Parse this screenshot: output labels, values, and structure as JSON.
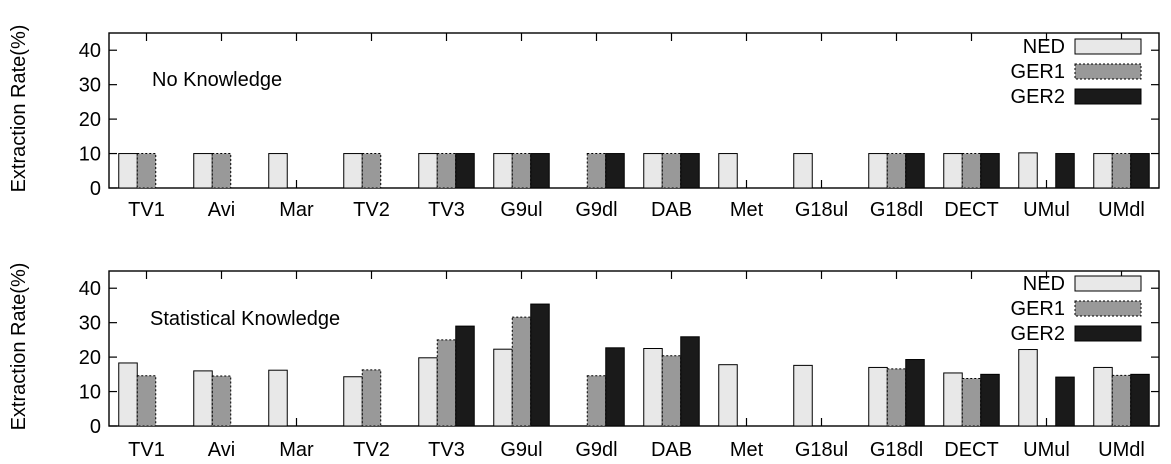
{
  "chart_data": [
    {
      "type": "bar",
      "annotation": "No Knowledge",
      "ylabel": "Extraction Rate(%)",
      "xlabel": "",
      "ylim": [
        0,
        45
      ],
      "yticks": [
        "0",
        "10",
        "20",
        "30",
        "40"
      ],
      "legend_position": "top-right",
      "categories": [
        "TV1",
        "Avi",
        "Mar",
        "TV2",
        "TV3",
        "G9ul",
        "G9dl",
        "DAB",
        "Met",
        "G18ul",
        "G18dl",
        "DECT",
        "UMul",
        "UMdl"
      ],
      "series": [
        {
          "name": "NED",
          "color": "#e8e8e8",
          "values": [
            10,
            10,
            10,
            10,
            10,
            10,
            0,
            10,
            10,
            10,
            10,
            10,
            10.2,
            10
          ]
        },
        {
          "name": "GER1",
          "color": "#999999",
          "values": [
            10,
            10,
            0,
            10,
            10,
            10,
            10,
            10,
            0,
            0,
            10,
            10,
            0,
            10
          ]
        },
        {
          "name": "GER2",
          "color": "#1a1a1a",
          "values": [
            0,
            0,
            0,
            0,
            10,
            10,
            10,
            10,
            0,
            0,
            10,
            10,
            10,
            10
          ]
        }
      ]
    },
    {
      "type": "bar",
      "annotation": "Statistical Knowledge",
      "ylabel": "Extraction Rate(%)",
      "xlabel": "",
      "ylim": [
        0,
        45
      ],
      "yticks": [
        "0",
        "10",
        "20",
        "30",
        "40"
      ],
      "legend_position": "top-right",
      "categories": [
        "TV1",
        "Avi",
        "Mar",
        "TV2",
        "TV3",
        "G9ul",
        "G9dl",
        "DAB",
        "Met",
        "G18ul",
        "G18dl",
        "DECT",
        "UMul",
        "UMdl"
      ],
      "series": [
        {
          "name": "NED",
          "color": "#e8e8e8",
          "values": [
            18.3,
            16,
            16.2,
            14.3,
            19.8,
            22.3,
            0,
            22.5,
            17.8,
            17.6,
            17,
            15.4,
            22.2,
            17
          ]
        },
        {
          "name": "GER1",
          "color": "#999999",
          "values": [
            14.6,
            14.5,
            0,
            16.3,
            25,
            31.6,
            14.6,
            20.4,
            0,
            0,
            16.6,
            13.8,
            0,
            14.7
          ]
        },
        {
          "name": "GER2",
          "color": "#1a1a1a",
          "values": [
            0,
            0,
            0,
            0,
            29,
            35.4,
            22.7,
            25.9,
            0,
            0,
            19.3,
            15,
            14.2,
            15
          ]
        }
      ]
    }
  ]
}
